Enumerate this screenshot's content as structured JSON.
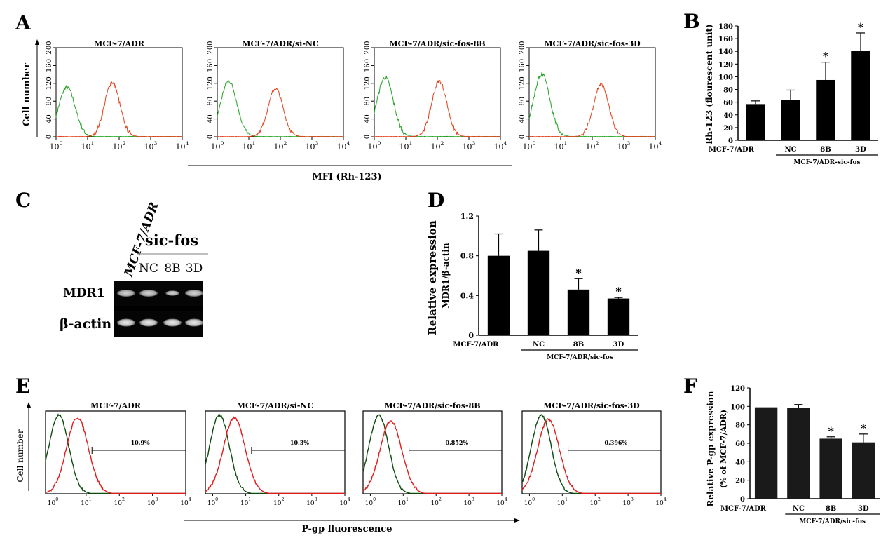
{
  "panel_letters": [
    "A",
    "B",
    "C",
    "D",
    "E",
    "F"
  ],
  "colors": {
    "green": "#22a322",
    "orange": "#e2401a",
    "red": "#e41a1a",
    "darkgreen": "#0d4a0d",
    "bar": "#000000"
  },
  "gel": {
    "lane_header": "MCF-7/ADR",
    "group_label": "sic-fos",
    "lane_labels": [
      "NC",
      "8B",
      "3D"
    ],
    "row_labels": [
      "MDR1",
      "β-actin"
    ]
  },
  "chart_data": [
    {
      "panel": "A",
      "type": "histogram",
      "ylabel": "Cell number",
      "xlabel": "MFI (Rh-123)",
      "x_scale": "log",
      "xlim": [
        1,
        10000
      ],
      "ylim": [
        0,
        200
      ],
      "yticks": [
        "0",
        "40",
        "80",
        "120",
        "160",
        "200"
      ],
      "xticks": [
        "10",
        "10",
        "10",
        "10",
        "10"
      ],
      "xtick_exps": [
        "0",
        "1",
        "2",
        "3",
        "4"
      ],
      "plots": [
        {
          "title": "MCF-7/ADR",
          "green_peak_x": 2.2,
          "green_peak_y": 112,
          "orange_peak_x": 60,
          "orange_peak_y": 122
        },
        {
          "title": "MCF-7/ADR/si-NC",
          "green_peak_x": 2.3,
          "green_peak_y": 125,
          "orange_peak_x": 70,
          "orange_peak_y": 108
        },
        {
          "title": "MCF-7/ADR/sic-fos-8B",
          "green_peak_x": 2.2,
          "green_peak_y": 133,
          "orange_peak_x": 115,
          "orange_peak_y": 125
        },
        {
          "title": "MCF-7/ADR/sic-fos-3D",
          "green_peak_x": 2.5,
          "green_peak_y": 140,
          "orange_peak_x": 190,
          "orange_peak_y": 118
        }
      ]
    },
    {
      "panel": "B",
      "type": "bar",
      "ylabel": "Rh-123 (flourescent unit)",
      "categories": [
        "MCF-7/ADR",
        "NC",
        "8B",
        "3D"
      ],
      "group_label": "MCF-7/ADR-sic-fos",
      "values": [
        57,
        63,
        95,
        141
      ],
      "errors": [
        5,
        16,
        28,
        28
      ],
      "significant": [
        false,
        false,
        true,
        true
      ],
      "ylim": [
        0,
        180
      ],
      "yticks": [
        "0",
        "20",
        "40",
        "60",
        "80",
        "100",
        "120",
        "140",
        "160",
        "180"
      ]
    },
    {
      "panel": "D",
      "type": "bar",
      "ylabel": "Relative expression",
      "ylabel2": "MDR1/β-actin",
      "categories": [
        "MCF-7/ADR",
        "NC",
        "8B",
        "3D"
      ],
      "group_label": "MCF-7/ADR/sic-fos",
      "values": [
        0.8,
        0.85,
        0.46,
        0.37
      ],
      "errors": [
        0.22,
        0.21,
        0.11,
        0.01
      ],
      "significant": [
        false,
        false,
        true,
        true
      ],
      "ylim": [
        0,
        1.2
      ],
      "yticks": [
        "0",
        "0.4",
        "0.8",
        "1.2"
      ]
    },
    {
      "panel": "E",
      "type": "histogram",
      "ylabel": "Cell number",
      "xlabel": "P-gp fluorescence",
      "x_scale": "log",
      "xlim": [
        0.6,
        10000
      ],
      "xticks": [
        "10",
        "10",
        "10",
        "10",
        "10"
      ],
      "xtick_exps": [
        "0",
        "1",
        "2",
        "3",
        "4"
      ],
      "plots": [
        {
          "title": "MCF-7/ADR",
          "gate_label": "10.9%",
          "green_peak_x": 1.5,
          "red_peak_x": 5.5,
          "red_peak_frac": 0.92
        },
        {
          "title": "MCF-7/ADR/si-NC",
          "gate_label": "10.3%",
          "green_peak_x": 1.6,
          "red_peak_x": 4.5,
          "red_peak_frac": 0.92
        },
        {
          "title": "MCF-7/ADR/sic-fos-8B",
          "gate_label": "0.852%",
          "green_peak_x": 1.8,
          "red_peak_x": 4.2,
          "red_peak_frac": 0.88
        },
        {
          "title": "MCF-7/ADR/sic-fos-3D",
          "gate_label": "0.396%",
          "green_peak_x": 2.3,
          "red_peak_x": 3.8,
          "red_peak_frac": 0.9
        }
      ]
    },
    {
      "panel": "F",
      "type": "bar",
      "ylabel": "Relative P-gp expression",
      "ylabel2": "(% of MCF-7/ADR)",
      "categories": [
        "MCF-7/ADR",
        "NC",
        "8B",
        "3D"
      ],
      "group_label": "MCF-7/ADR/sic-fos",
      "values": [
        99,
        98,
        65,
        61
      ],
      "errors": [
        0,
        4,
        2,
        9
      ],
      "significant": [
        false,
        false,
        true,
        true
      ],
      "ylim": [
        0,
        120
      ],
      "yticks": [
        "0",
        "20",
        "40",
        "60",
        "80",
        "100",
        "120"
      ]
    }
  ]
}
